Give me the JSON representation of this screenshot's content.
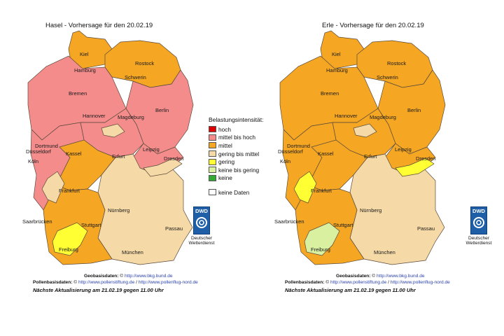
{
  "maps": [
    {
      "title": "Hasel - Vorhersage für den 20.02.19",
      "regions": {
        "north_coast": "#f5a623",
        "mecklenburg": "#f5a623",
        "east_brandenburg": "#f48c8c",
        "northwest": "#f48c8c",
        "central": "#f48c8c",
        "harz": "#f5d9a6",
        "saxony": "#f48c8c",
        "rhein": "#f48c8c",
        "hesse": "#f5a623",
        "bavaria": "#f5d9a6",
        "south_west": "#f5a623",
        "freiburg": "#ffff33",
        "elbe": "#f5d9a6",
        "rhine_valley": "#f5d9a6"
      },
      "cities": [
        "Kiel",
        "Rostock",
        "Hamburg",
        "Schwerin",
        "Bremen",
        "Berlin",
        "Hannover",
        "Magdeburg",
        "Dortmund",
        "Düsseldorf",
        "Köln",
        "Kassel",
        "Erfurt",
        "Leipzig",
        "Dresden",
        "Frankfurt",
        "Nürnberg",
        "Saarbrücken",
        "Stuttgart",
        "Passau",
        "Freiburg",
        "München"
      ],
      "footer": {
        "geo_label": "Geobasisdaten:",
        "geo_link": "http://www.bkg.bund.de",
        "pollen_label": "Pollenbasisdaten:",
        "pollen_link1": "http://www.pollenstiftung.de",
        "pollen_sep": "/",
        "pollen_link2": "http://www.pollenflug-nord.de",
        "update": "Nächste Aktualisierung am 21.02.19 gegen 11.00 Uhr"
      }
    },
    {
      "title": "Erle - Vorhersage für den 20.02.19",
      "regions": {
        "north_coast": "#f5a623",
        "mecklenburg": "#f5a623",
        "east_brandenburg": "#f5a623",
        "northwest": "#f5a623",
        "central": "#f5a623",
        "harz": "#f5d9a6",
        "saxony": "#f5a623",
        "rhein": "#f5a623",
        "hesse": "#f5a623",
        "bavaria": "#f5d9a6",
        "south_west": "#f5a623",
        "freiburg": "#d8f0a0",
        "elbe": "#ffff33",
        "rhine_valley": "#ffff33"
      },
      "cities": [
        "Kiel",
        "Rostock",
        "Hamburg",
        "Schwerin",
        "Bremen",
        "Berlin",
        "Hannover",
        "Magdeburg",
        "Dortmund",
        "Düsseldorf",
        "Köln",
        "Kassel",
        "Erfurt",
        "Leipzig",
        "Dresden",
        "Frankfurt",
        "Nürnberg",
        "Saarbrücken",
        "Stuttgart",
        "Passau",
        "Freiburg",
        "München"
      ],
      "footer": {
        "geo_label": "Geobasisdaten:",
        "geo_link": "http://www.bkg.bund.de",
        "pollen_label": "Pollenbasisdaten:",
        "pollen_link1": "http://www.pollenstiftung.de",
        "pollen_sep": "/",
        "pollen_link2": "http://www.pollenflug-nord.de",
        "update": "Nächste Aktualisierung am 21.02.19 gegen 11.00 Uhr"
      }
    }
  ],
  "legend": {
    "title": "Belastungsintensität:",
    "items": [
      {
        "label": "hoch",
        "color": "#dd0000"
      },
      {
        "label": "mittel bis hoch",
        "color": "#f48c8c"
      },
      {
        "label": "mittel",
        "color": "#f5a623"
      },
      {
        "label": "gering bis mittel",
        "color": "#f5d9a6"
      },
      {
        "label": "gering",
        "color": "#ffff33"
      },
      {
        "label": "keine bis gering",
        "color": "#d8f0a0"
      },
      {
        "label": "keine",
        "color": "#33aa33"
      }
    ],
    "no_data": {
      "label": "keine Daten",
      "color": "#ffffff"
    }
  },
  "dwd": {
    "logo_text": "DWD",
    "name_line1": "Deutscher",
    "name_line2": "Wetterdienst",
    "icon": "dwd-swirl-icon"
  }
}
